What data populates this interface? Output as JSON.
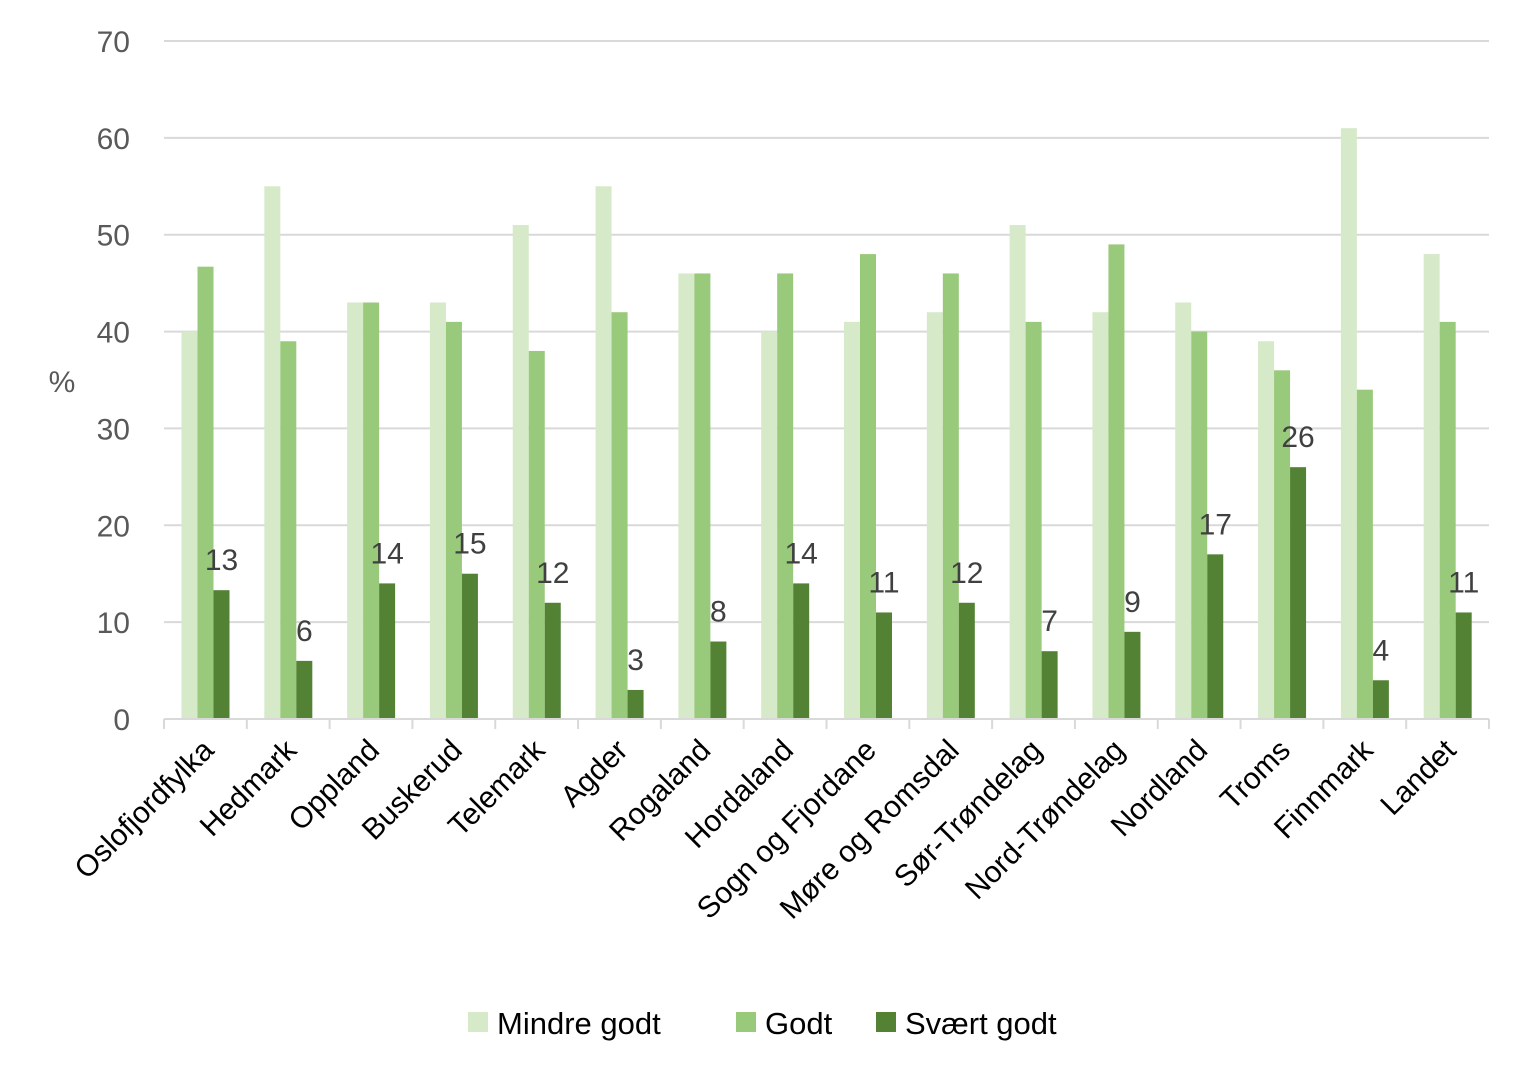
{
  "chart_data": {
    "type": "bar",
    "title": "",
    "xlabel": "",
    "ylabel": "%",
    "ylim": [
      0,
      70
    ],
    "yticks": [
      0,
      10,
      20,
      30,
      40,
      50,
      60,
      70
    ],
    "grid": "horizontal",
    "legend_position": "bottom",
    "categories": [
      "Oslofjordfylka",
      "Hedmark",
      "Oppland",
      "Buskerud",
      "Telemark",
      "Agder",
      "Rogaland",
      "Hordaland",
      "Sogn og Fjordane",
      "Møre og Romsdal",
      "Sør-Trøndelag",
      "Nord-Trøndelag",
      "Nordland",
      "Troms",
      "Finnmark",
      "Landet"
    ],
    "series": [
      {
        "name": "Mindre godt",
        "color": "#d6e9c9",
        "values": [
          40,
          55,
          43,
          43,
          51,
          55,
          46,
          40,
          41,
          42,
          51,
          42,
          43,
          39,
          61,
          48
        ],
        "show_labels": false
      },
      {
        "name": "Godt",
        "color": "#99c97a",
        "values": [
          46.7,
          39,
          43,
          41,
          38,
          42,
          46,
          46,
          48,
          46,
          41,
          49,
          40,
          36,
          34,
          41
        ],
        "show_labels": false
      },
      {
        "name": "Svært godt",
        "color": "#548235",
        "values": [
          13.3,
          6,
          14,
          15,
          12,
          3,
          8,
          14,
          11,
          12,
          7,
          9,
          17,
          26,
          4,
          11
        ],
        "show_labels": true,
        "labels": [
          "13",
          "6",
          "14",
          "15",
          "12",
          "3",
          "8",
          "14",
          "11",
          "12",
          "7",
          "9",
          "17",
          "26",
          "4",
          "11"
        ]
      }
    ]
  }
}
